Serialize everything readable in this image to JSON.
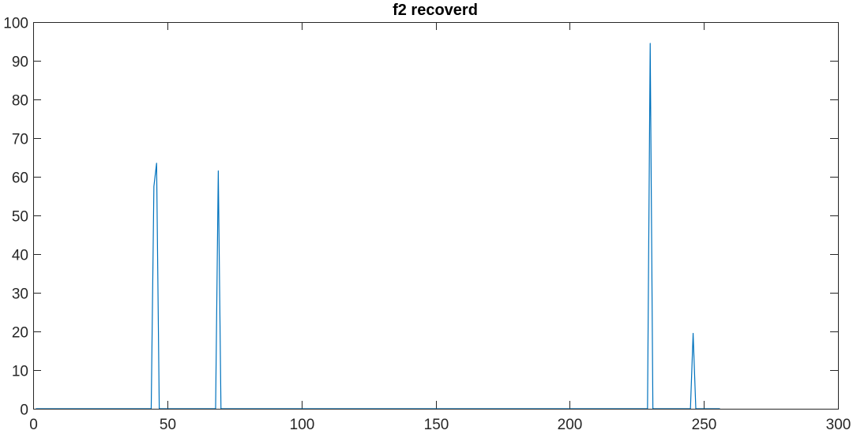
{
  "chart_data": {
    "type": "line",
    "title": "f2 recoverd",
    "xlabel": "",
    "ylabel": "",
    "xlim": [
      0,
      300
    ],
    "ylim": [
      0,
      100
    ],
    "xticks": [
      0,
      50,
      100,
      150,
      200,
      250,
      300
    ],
    "yticks": [
      0,
      10,
      20,
      30,
      40,
      50,
      60,
      70,
      80,
      90,
      100
    ],
    "grid": false,
    "box": true,
    "series": [
      {
        "color": "#0072BD",
        "x": [
          1,
          44,
          45,
          46,
          47,
          68,
          69,
          70,
          229,
          230,
          231,
          245,
          246,
          247,
          256
        ],
        "y": [
          0,
          0,
          57.5,
          63.5,
          0,
          0,
          61.5,
          0,
          0,
          94.5,
          0,
          0,
          19.5,
          0,
          0
        ]
      }
    ]
  }
}
